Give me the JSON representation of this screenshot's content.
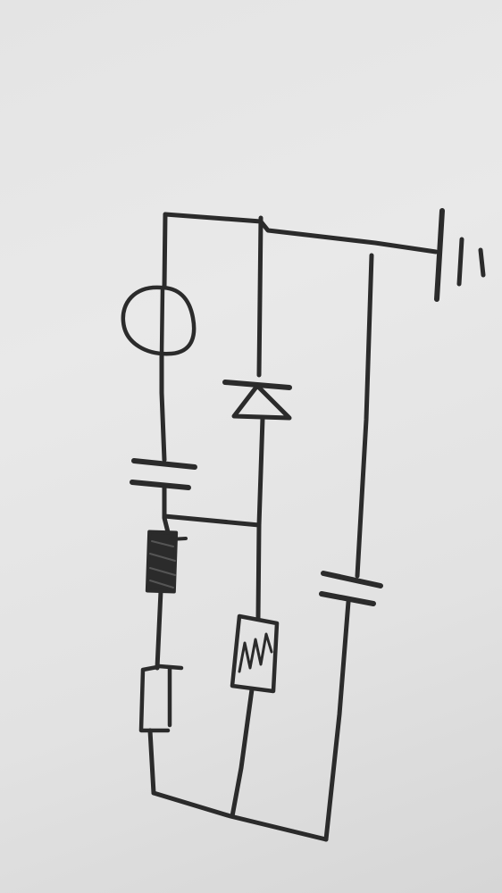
{
  "diagram": {
    "kind": "hand-drawn circuit schematic",
    "ink_color": "#2b2b2b",
    "paper_color": "#e6e6e6",
    "labels": [],
    "components": [
      {
        "id": "ground",
        "type": "ground-symbol"
      },
      {
        "id": "source",
        "type": "ac-source-circle"
      },
      {
        "id": "cap-left",
        "type": "capacitor"
      },
      {
        "id": "inductor",
        "type": "inductor-filled-box"
      },
      {
        "id": "resistor-left",
        "type": "resistor-box"
      },
      {
        "id": "diode",
        "type": "diode"
      },
      {
        "id": "resistor-coil",
        "type": "coil-resistor-box"
      },
      {
        "id": "cap-right",
        "type": "capacitor"
      }
    ]
  }
}
